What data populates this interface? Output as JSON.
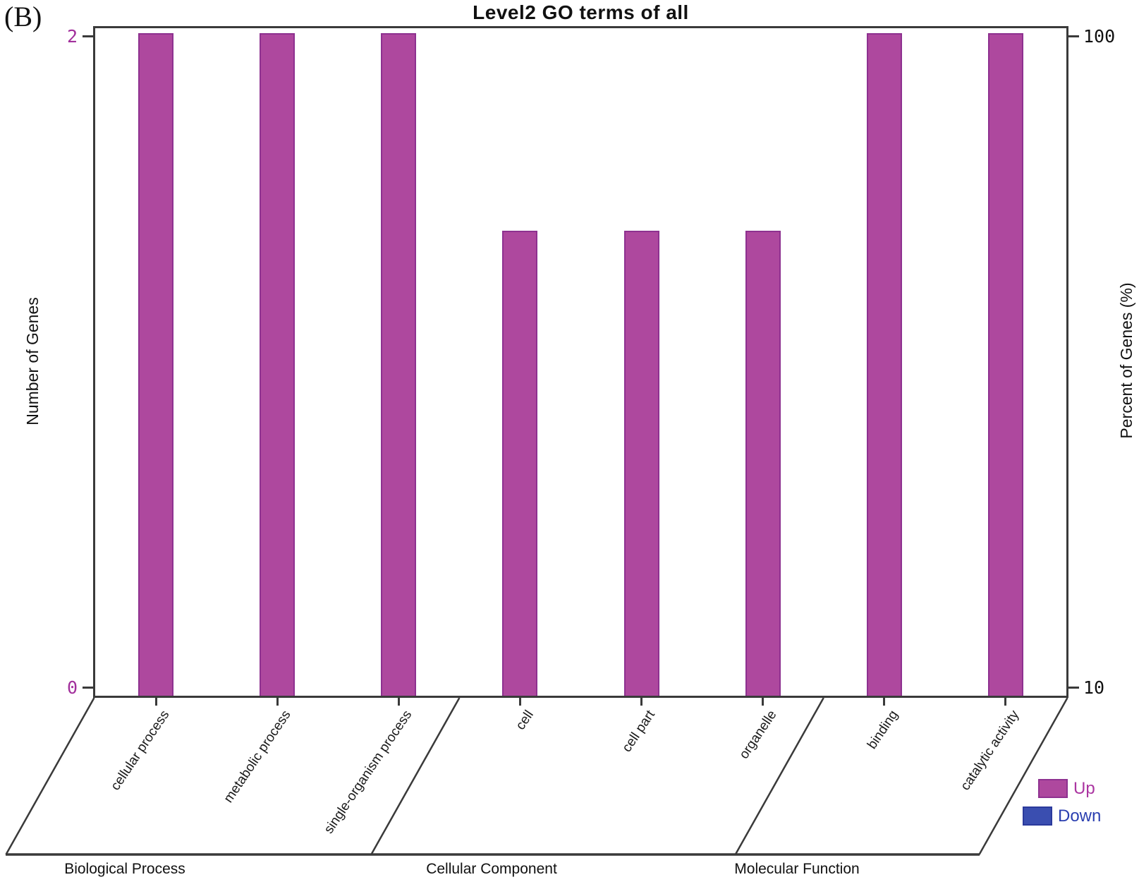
{
  "panel_label": "(B)",
  "title": "Level2 GO terms of all",
  "axes": {
    "left_label": "Number of Genes",
    "left_ticks": [
      "2",
      "0"
    ],
    "right_label": "Percent of Genes (%)",
    "right_ticks": [
      "100",
      "10"
    ],
    "left_tick_color": "#A2309C",
    "right_tick_color": "#111111"
  },
  "groups": [
    {
      "label": "Biological Process"
    },
    {
      "label": "Cellular Component"
    },
    {
      "label": "Molecular Function"
    }
  ],
  "legend": [
    {
      "label": "Up",
      "color": "#AE489E",
      "border_color": "#8E3190",
      "text_color": "#AB35A1"
    },
    {
      "label": "Down",
      "color": "#3A4EB0",
      "border_color": "#2B3A9C",
      "text_color": "#2B3FB0"
    }
  ],
  "chart_data": {
    "type": "bar",
    "title": "Level2 GO terms of all",
    "categories": [
      "cellular process",
      "metabolic process",
      "single-organism process",
      "cell",
      "cell part",
      "organelle",
      "binding",
      "catalytic activity"
    ],
    "group_spans": [
      {
        "group": "Biological Process",
        "start": 0,
        "end": 2
      },
      {
        "group": "Cellular Component",
        "start": 3,
        "end": 5
      },
      {
        "group": "Molecular Function",
        "start": 6,
        "end": 7
      }
    ],
    "series": [
      {
        "name": "Up",
        "color": "#AE489E",
        "border_color": "#8E3190",
        "num_genes": [
          2,
          2,
          2,
          1,
          1,
          1,
          2,
          2
        ],
        "percent": [
          100,
          100,
          100,
          50,
          50,
          50,
          100,
          100
        ]
      },
      {
        "name": "Down",
        "color": "#3A4EB0",
        "border_color": "#2B3A9C",
        "num_genes": [
          0,
          0,
          0,
          0,
          0,
          0,
          0,
          0
        ],
        "percent": [
          0,
          0,
          0,
          0,
          0,
          0,
          0,
          0
        ]
      }
    ],
    "left_axis": {
      "label": "Number of Genes",
      "ticks": [
        0,
        2
      ],
      "scale": "log"
    },
    "right_axis": {
      "label": "Percent of Genes (%)",
      "ticks": [
        10,
        100
      ],
      "scale": "log",
      "range": [
        10,
        100
      ]
    },
    "grid": false,
    "legend_position": "bottom-right"
  }
}
